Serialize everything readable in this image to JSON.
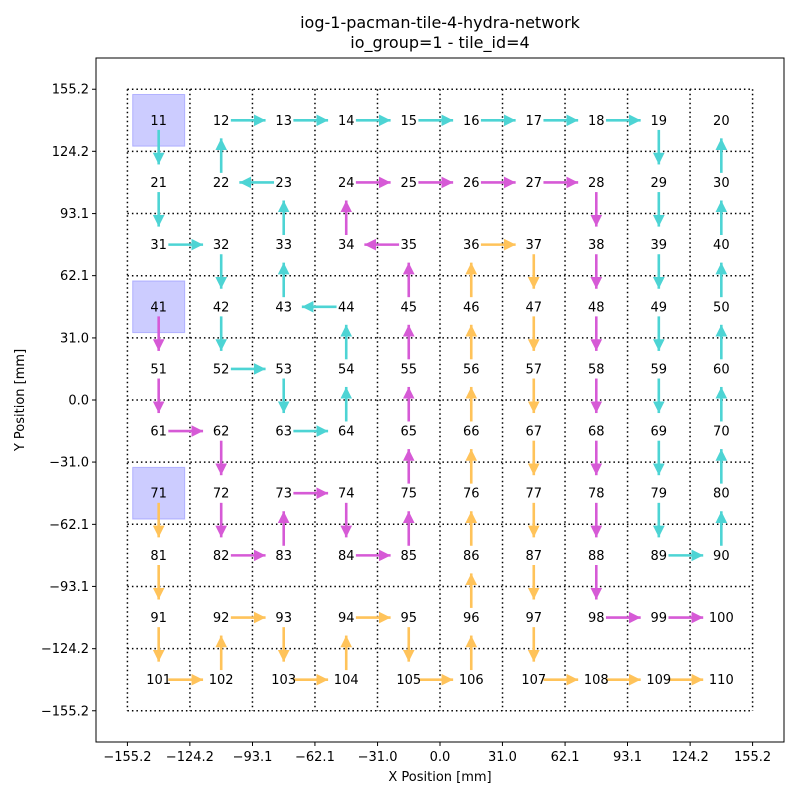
{
  "chart_data": {
    "type": "network-grid",
    "title_lines": [
      "iog-1-pacman-tile-4-hydra-network",
      "io_group=1 - tile_id=4"
    ],
    "xlabel": "X Position [mm]",
    "ylabel": "Y Position [mm]",
    "xlim": [
      -170.8,
      170.8
    ],
    "ylim": [
      -170.8,
      170.8
    ],
    "xticks": [
      -155.2,
      -124.2,
      -93.1,
      -62.1,
      -31.0,
      0.0,
      31.0,
      62.1,
      93.1,
      124.2,
      155.2
    ],
    "yticks": [
      -155.2,
      -124.2,
      -93.1,
      -62.1,
      -31.0,
      0.0,
      31.0,
      62.1,
      93.1,
      124.2,
      155.2
    ],
    "xtick_labels": [
      "−155.2",
      "−124.2",
      "−93.1",
      "−62.1",
      "−31.0",
      "0.0",
      "31.0",
      "62.1",
      "93.1",
      "124.2",
      "155.2"
    ],
    "ytick_labels": [
      "−155.2",
      "−124.2",
      "−93.1",
      "−62.1",
      "−31.0",
      "0.0",
      "31.0",
      "62.1",
      "93.1",
      "124.2",
      "155.2"
    ],
    "grid_step": 31.04,
    "grid_style": "dotted",
    "colors": {
      "cyan": "#4dd4d4",
      "magenta": "#d65ad6",
      "orange": "#ffc35a",
      "root_fill": "#8080ff"
    },
    "root_nodes": [
      11,
      41,
      71
    ],
    "node_labels": [
      "11",
      "12",
      "13",
      "14",
      "15",
      "16",
      "17",
      "18",
      "19",
      "20",
      "21",
      "22",
      "23",
      "24",
      "25",
      "26",
      "27",
      "28",
      "29",
      "30",
      "31",
      "32",
      "33",
      "34",
      "35",
      "36",
      "37",
      "38",
      "39",
      "40",
      "41",
      "42",
      "43",
      "44",
      "45",
      "46",
      "47",
      "48",
      "49",
      "50",
      "51",
      "52",
      "53",
      "54",
      "55",
      "56",
      "57",
      "58",
      "59",
      "60",
      "61",
      "62",
      "63",
      "64",
      "65",
      "66",
      "67",
      "68",
      "69",
      "70",
      "71",
      "72",
      "73",
      "74",
      "75",
      "76",
      "77",
      "78",
      "79",
      "80",
      "81",
      "82",
      "83",
      "84",
      "85",
      "86",
      "87",
      "88",
      "89",
      "90",
      "91",
      "92",
      "93",
      "94",
      "95",
      "96",
      "97",
      "98",
      "99",
      "100",
      "101",
      "102",
      "103",
      "104",
      "105",
      "106",
      "107",
      "108",
      "109",
      "110"
    ],
    "edges": [
      {
        "from": 11,
        "to": 21,
        "color": "cyan"
      },
      {
        "from": 21,
        "to": 31,
        "color": "cyan"
      },
      {
        "from": 31,
        "to": 32,
        "color": "cyan"
      },
      {
        "from": 32,
        "to": 42,
        "color": "cyan"
      },
      {
        "from": 42,
        "to": 52,
        "color": "cyan"
      },
      {
        "from": 52,
        "to": 53,
        "color": "cyan"
      },
      {
        "from": 53,
        "to": 63,
        "color": "cyan"
      },
      {
        "from": 63,
        "to": 64,
        "color": "cyan"
      },
      {
        "from": 64,
        "to": 54,
        "color": "cyan"
      },
      {
        "from": 54,
        "to": 44,
        "color": "cyan"
      },
      {
        "from": 44,
        "to": 43,
        "color": "cyan"
      },
      {
        "from": 43,
        "to": 33,
        "color": "cyan"
      },
      {
        "from": 33,
        "to": 23,
        "color": "cyan"
      },
      {
        "from": 23,
        "to": 22,
        "color": "cyan"
      },
      {
        "from": 22,
        "to": 12,
        "color": "cyan"
      },
      {
        "from": 12,
        "to": 13,
        "color": "cyan"
      },
      {
        "from": 13,
        "to": 14,
        "color": "cyan"
      },
      {
        "from": 14,
        "to": 15,
        "color": "cyan"
      },
      {
        "from": 15,
        "to": 16,
        "color": "cyan"
      },
      {
        "from": 16,
        "to": 17,
        "color": "cyan"
      },
      {
        "from": 17,
        "to": 18,
        "color": "cyan"
      },
      {
        "from": 18,
        "to": 19,
        "color": "cyan"
      },
      {
        "from": 19,
        "to": 29,
        "color": "cyan"
      },
      {
        "from": 29,
        "to": 39,
        "color": "cyan"
      },
      {
        "from": 39,
        "to": 49,
        "color": "cyan"
      },
      {
        "from": 49,
        "to": 59,
        "color": "cyan"
      },
      {
        "from": 59,
        "to": 69,
        "color": "cyan"
      },
      {
        "from": 69,
        "to": 79,
        "color": "cyan"
      },
      {
        "from": 79,
        "to": 89,
        "color": "cyan"
      },
      {
        "from": 89,
        "to": 90,
        "color": "cyan"
      },
      {
        "from": 90,
        "to": 80,
        "color": "cyan"
      },
      {
        "from": 80,
        "to": 70,
        "color": "cyan"
      },
      {
        "from": 70,
        "to": 60,
        "color": "cyan"
      },
      {
        "from": 60,
        "to": 50,
        "color": "cyan"
      },
      {
        "from": 50,
        "to": 40,
        "color": "cyan"
      },
      {
        "from": 40,
        "to": 30,
        "color": "cyan"
      },
      {
        "from": 30,
        "to": 20,
        "color": "cyan"
      },
      {
        "from": 41,
        "to": 51,
        "color": "magenta"
      },
      {
        "from": 51,
        "to": 61,
        "color": "magenta"
      },
      {
        "from": 61,
        "to": 62,
        "color": "magenta"
      },
      {
        "from": 62,
        "to": 72,
        "color": "magenta"
      },
      {
        "from": 72,
        "to": 82,
        "color": "magenta"
      },
      {
        "from": 82,
        "to": 83,
        "color": "magenta"
      },
      {
        "from": 83,
        "to": 73,
        "color": "magenta"
      },
      {
        "from": 73,
        "to": 74,
        "color": "magenta"
      },
      {
        "from": 74,
        "to": 84,
        "color": "magenta"
      },
      {
        "from": 84,
        "to": 85,
        "color": "magenta"
      },
      {
        "from": 85,
        "to": 75,
        "color": "magenta"
      },
      {
        "from": 75,
        "to": 65,
        "color": "magenta"
      },
      {
        "from": 65,
        "to": 55,
        "color": "magenta"
      },
      {
        "from": 55,
        "to": 45,
        "color": "magenta"
      },
      {
        "from": 45,
        "to": 35,
        "color": "magenta"
      },
      {
        "from": 35,
        "to": 34,
        "color": "magenta"
      },
      {
        "from": 34,
        "to": 24,
        "color": "magenta"
      },
      {
        "from": 24,
        "to": 25,
        "color": "magenta"
      },
      {
        "from": 25,
        "to": 26,
        "color": "magenta"
      },
      {
        "from": 26,
        "to": 27,
        "color": "magenta"
      },
      {
        "from": 27,
        "to": 28,
        "color": "magenta"
      },
      {
        "from": 28,
        "to": 38,
        "color": "magenta"
      },
      {
        "from": 38,
        "to": 48,
        "color": "magenta"
      },
      {
        "from": 48,
        "to": 58,
        "color": "magenta"
      },
      {
        "from": 58,
        "to": 68,
        "color": "magenta"
      },
      {
        "from": 68,
        "to": 78,
        "color": "magenta"
      },
      {
        "from": 78,
        "to": 88,
        "color": "magenta"
      },
      {
        "from": 88,
        "to": 98,
        "color": "magenta"
      },
      {
        "from": 98,
        "to": 99,
        "color": "magenta"
      },
      {
        "from": 99,
        "to": 100,
        "color": "magenta"
      },
      {
        "from": 71,
        "to": 81,
        "color": "orange"
      },
      {
        "from": 81,
        "to": 91,
        "color": "orange"
      },
      {
        "from": 91,
        "to": 101,
        "color": "orange"
      },
      {
        "from": 101,
        "to": 102,
        "color": "orange"
      },
      {
        "from": 102,
        "to": 92,
        "color": "orange"
      },
      {
        "from": 92,
        "to": 93,
        "color": "orange"
      },
      {
        "from": 93,
        "to": 103,
        "color": "orange"
      },
      {
        "from": 103,
        "to": 104,
        "color": "orange"
      },
      {
        "from": 104,
        "to": 94,
        "color": "orange"
      },
      {
        "from": 94,
        "to": 95,
        "color": "orange"
      },
      {
        "from": 95,
        "to": 105,
        "color": "orange"
      },
      {
        "from": 105,
        "to": 106,
        "color": "orange"
      },
      {
        "from": 106,
        "to": 96,
        "color": "orange"
      },
      {
        "from": 96,
        "to": 86,
        "color": "orange"
      },
      {
        "from": 86,
        "to": 76,
        "color": "orange"
      },
      {
        "from": 76,
        "to": 66,
        "color": "orange"
      },
      {
        "from": 66,
        "to": 56,
        "color": "orange"
      },
      {
        "from": 56,
        "to": 46,
        "color": "orange"
      },
      {
        "from": 46,
        "to": 36,
        "color": "orange"
      },
      {
        "from": 36,
        "to": 37,
        "color": "orange"
      },
      {
        "from": 37,
        "to": 47,
        "color": "orange"
      },
      {
        "from": 47,
        "to": 57,
        "color": "orange"
      },
      {
        "from": 57,
        "to": 67,
        "color": "orange"
      },
      {
        "from": 67,
        "to": 77,
        "color": "orange"
      },
      {
        "from": 77,
        "to": 87,
        "color": "orange"
      },
      {
        "from": 87,
        "to": 97,
        "color": "orange"
      },
      {
        "from": 97,
        "to": 107,
        "color": "orange"
      },
      {
        "from": 107,
        "to": 108,
        "color": "orange"
      },
      {
        "from": 108,
        "to": 109,
        "color": "orange"
      },
      {
        "from": 109,
        "to": 110,
        "color": "orange"
      }
    ]
  }
}
